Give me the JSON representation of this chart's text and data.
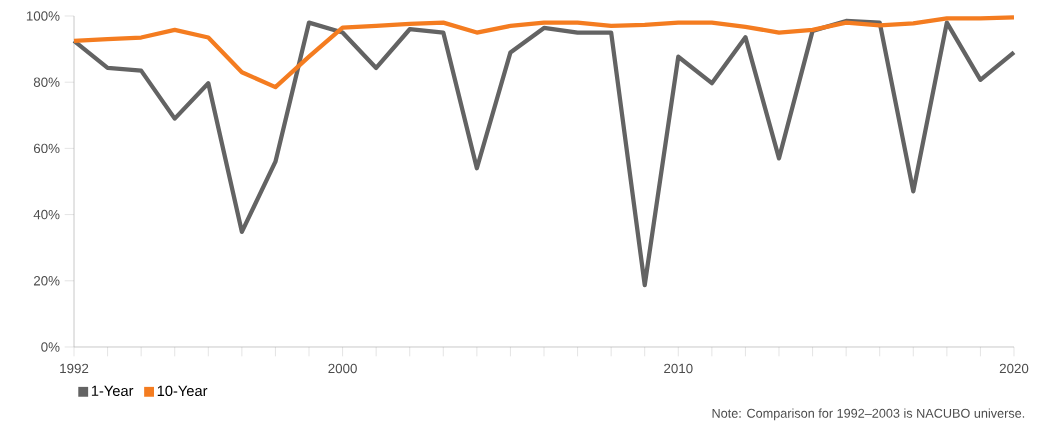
{
  "chart_data": {
    "type": "line",
    "x": [
      1992,
      1993,
      1994,
      1995,
      1996,
      1997,
      1998,
      1999,
      2000,
      2001,
      2002,
      2003,
      2004,
      2005,
      2006,
      2007,
      2008,
      2009,
      2010,
      2011,
      2012,
      2013,
      2014,
      2015,
      2016,
      2017,
      2018,
      2019,
      2020
    ],
    "series": [
      {
        "name": "1-Year",
        "color": "#636363",
        "values": [
          92.5,
          84.3,
          83.5,
          69,
          79.7,
          34.8,
          56,
          98,
          95,
          84.3,
          96,
          95,
          54,
          89,
          96.4,
          95,
          95,
          18.7,
          87.7,
          79.7,
          93.6,
          57,
          95.5,
          98.5,
          98,
          47,
          98,
          80.7,
          89
        ]
      },
      {
        "name": "10-Year",
        "color": "#f47c20",
        "values": [
          92.5,
          93,
          93.5,
          95.8,
          93.5,
          83,
          78.5,
          87.7,
          96.5,
          97,
          97.6,
          98,
          95,
          97,
          98,
          98,
          97,
          97.3,
          98,
          98,
          96.7,
          95,
          95.8,
          98,
          97.2,
          97.8,
          99.3,
          99.3,
          99.6
        ]
      }
    ],
    "xlim": [
      1992,
      2020
    ],
    "xticks": [
      1992,
      {
        "value": 1993,
        "label": null
      },
      {
        "value": 1994,
        "label": null
      },
      {
        "value": 1995,
        "label": null
      },
      {
        "value": 1996,
        "label": null
      },
      {
        "value": 1997,
        "label": null
      },
      {
        "value": 1998,
        "label": null
      },
      {
        "value": 1999,
        "label": null
      },
      2000,
      {
        "value": 2001,
        "label": null
      },
      {
        "value": 2002,
        "label": null
      },
      {
        "value": 2003,
        "label": null
      },
      {
        "value": 2004,
        "label": null
      },
      {
        "value": 2005,
        "label": null
      },
      {
        "value": 2006,
        "label": null
      },
      {
        "value": 2007,
        "label": null
      },
      {
        "value": 2008,
        "label": null
      },
      {
        "value": 2009,
        "label": null
      },
      2010,
      {
        "value": 2011,
        "label": null
      },
      {
        "value": 2012,
        "label": null
      },
      {
        "value": 2013,
        "label": null
      },
      {
        "value": 2014,
        "label": null
      },
      {
        "value": 2015,
        "label": null
      },
      {
        "value": 2016,
        "label": null
      },
      {
        "value": 2017,
        "label": null
      },
      {
        "value": 2018,
        "label": null
      },
      {
        "value": 2019,
        "label": null
      },
      2020
    ],
    "ylim": [
      0,
      100
    ],
    "yticks": [
      {
        "value": 0,
        "label": "0%"
      },
      {
        "value": 20,
        "label": "20%"
      },
      {
        "value": 40,
        "label": "40%"
      },
      {
        "value": 60,
        "label": "60%"
      },
      {
        "value": 80,
        "label": "80%"
      },
      {
        "value": 100,
        "label": "100%"
      }
    ],
    "grid": false,
    "legend": "bottom left",
    "marker": "none",
    "line_style": "solid",
    "annotations": [
      "Note: Comparison for 1992–2003 is NACUBO universe."
    ]
  }
}
